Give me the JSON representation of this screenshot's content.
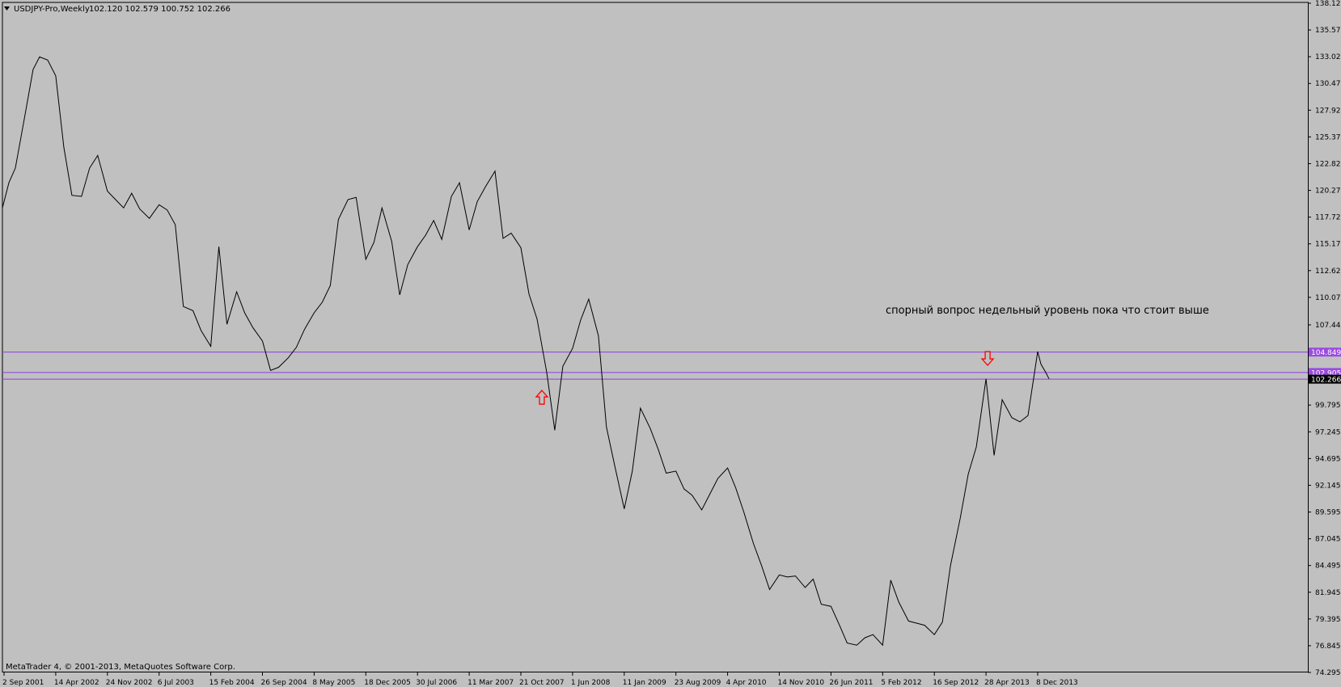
{
  "header": {
    "symbol_timeframe": "USDJPY-Pro,Weekly",
    "ohlc": "102.120 102.579 100.752 102.266"
  },
  "footer": {
    "copyright": "MetaTrader 4, © 2001-2013, MetaQuotes Software Corp."
  },
  "annotation": {
    "text": "спорный вопрос недельный уровень пока что стоит выше"
  },
  "colors": {
    "background": "#c0c0c0",
    "line": "#000000",
    "level": "#8c3ce6",
    "price_tag": "#9b4be0",
    "arrow": "#ff0000"
  },
  "chart_data": {
    "type": "line",
    "title": "USDJPY-Pro,Weekly",
    "xlabel": "",
    "ylabel": "",
    "ylim": [
      74.295,
      138.12
    ],
    "grid": false,
    "price_axis_ticks": [
      "138.120",
      "135.570",
      "133.020",
      "130.470",
      "127.920",
      "125.370",
      "122.820",
      "120.270",
      "117.720",
      "115.170",
      "112.620",
      "110.070",
      "107.445",
      "104.849",
      "102.905",
      "102.266",
      "99.795",
      "97.245",
      "94.695",
      "92.145",
      "89.595",
      "87.045",
      "84.495",
      "81.945",
      "79.395",
      "76.845",
      "74.295"
    ],
    "time_axis_ticks": [
      "2 Sep 2001",
      "14 Apr 2002",
      "24 Nov 2002",
      "6 Jul 2003",
      "15 Feb 2004",
      "26 Sep 2004",
      "8 May 2005",
      "18 Dec 2005",
      "30 Jul 2006",
      "11 Mar 2007",
      "21 Oct 2007",
      "1 Jun 2008",
      "11 Jan 2009",
      "23 Aug 2009",
      "4 Apr 2010",
      "14 Nov 2010",
      "26 Jun 2011",
      "5 Feb 2012",
      "16 Sep 2012",
      "28 Apr 2013",
      "8 Dec 2013"
    ],
    "series": [
      {
        "x": [
          "2001-08-26",
          "2001-09-23",
          "2001-10-21",
          "2001-12-02",
          "2002-01-06",
          "2002-02-03",
          "2002-03-10",
          "2002-04-14",
          "2002-05-19",
          "2002-06-23",
          "2002-08-04",
          "2002-09-08",
          "2002-10-13",
          "2002-11-24",
          "2002-12-29",
          "2003-02-02",
          "2003-03-09",
          "2003-04-13",
          "2003-05-25",
          "2003-07-06",
          "2003-08-10",
          "2003-09-14",
          "2003-10-19",
          "2003-11-30",
          "2004-01-04",
          "2004-02-15",
          "2004-03-21",
          "2004-04-25",
          "2004-06-06",
          "2004-07-11",
          "2004-08-15",
          "2004-09-26",
          "2004-10-31",
          "2004-12-05",
          "2005-01-16",
          "2005-02-20",
          "2005-03-27",
          "2005-05-08",
          "2005-06-12",
          "2005-07-17",
          "2005-08-21",
          "2005-10-02",
          "2005-11-06",
          "2005-12-18",
          "2006-01-22",
          "2006-02-26",
          "2006-04-09",
          "2006-05-14",
          "2006-06-18",
          "2006-07-30",
          "2006-09-03",
          "2006-10-08",
          "2006-11-12",
          "2006-12-24",
          "2007-01-28",
          "2007-03-11",
          "2007-04-15",
          "2007-05-20",
          "2007-07-01",
          "2007-08-05",
          "2007-09-09",
          "2007-10-21",
          "2007-11-25",
          "2007-12-30",
          "2008-02-10",
          "2008-03-16",
          "2008-04-20",
          "2008-06-01",
          "2008-07-06",
          "2008-08-10",
          "2008-09-21",
          "2008-10-26",
          "2008-11-30",
          "2009-01-11",
          "2009-02-15",
          "2009-03-22",
          "2009-05-03",
          "2009-06-07",
          "2009-07-12",
          "2009-08-23",
          "2009-09-27",
          "2009-11-01",
          "2009-12-13",
          "2010-01-17",
          "2010-02-21",
          "2010-04-04",
          "2010-05-09",
          "2010-06-13",
          "2010-07-25",
          "2010-08-29",
          "2010-10-03",
          "2010-11-14",
          "2010-12-19",
          "2011-01-23",
          "2011-03-06",
          "2011-04-10",
          "2011-05-15",
          "2011-06-26",
          "2011-07-31",
          "2011-09-04",
          "2011-10-16",
          "2011-11-20",
          "2011-12-25",
          "2012-02-05",
          "2012-03-11",
          "2012-04-15",
          "2012-05-27",
          "2012-07-01",
          "2012-08-05",
          "2012-09-16",
          "2012-10-21",
          "2012-11-25",
          "2013-01-06",
          "2013-02-10",
          "2013-03-17",
          "2013-04-28",
          "2013-06-02",
          "2013-07-07",
          "2013-08-18",
          "2013-09-22",
          "2013-10-27",
          "2013-12-08",
          "2013-12-22",
          "2014-01-12",
          "2014-01-26"
        ],
        "values": [
          118.6,
          121.0,
          122.4,
          127.5,
          131.8,
          133.0,
          132.7,
          131.2,
          124.4,
          119.8,
          119.7,
          122.4,
          123.6,
          120.2,
          119.4,
          118.6,
          120.0,
          118.5,
          117.6,
          118.9,
          118.4,
          117.0,
          109.2,
          108.8,
          106.9,
          105.4,
          114.9,
          107.5,
          110.6,
          108.6,
          107.2,
          105.9,
          103.1,
          103.4,
          104.3,
          105.3,
          107.0,
          108.6,
          109.6,
          111.2,
          117.5,
          119.4,
          119.6,
          113.7,
          115.3,
          118.6,
          115.4,
          110.3,
          113.2,
          114.9,
          116.0,
          117.4,
          115.6,
          119.7,
          121.0,
          116.5,
          119.2,
          120.6,
          122.1,
          115.7,
          116.2,
          114.8,
          110.4,
          108.0,
          102.9,
          97.4,
          103.5,
          105.2,
          107.9,
          109.9,
          106.4,
          97.7,
          94.1,
          89.9,
          93.5,
          99.5,
          97.6,
          95.6,
          93.3,
          93.5,
          91.8,
          91.2,
          89.8,
          91.3,
          92.8,
          93.8,
          91.9,
          89.6,
          86.6,
          84.5,
          82.2,
          83.6,
          83.4,
          83.5,
          82.4,
          83.2,
          80.8,
          80.6,
          78.9,
          77.1,
          76.9,
          77.6,
          77.9,
          76.9,
          83.1,
          81.0,
          79.2,
          79.0,
          78.8,
          77.9,
          79.1,
          84.5,
          89.0,
          93.2,
          95.8,
          102.3,
          95.0,
          100.3,
          98.6,
          98.2,
          98.8,
          104.9,
          103.7,
          102.9,
          102.3
        ]
      }
    ],
    "horizontal_lines": [
      {
        "value": 104.849,
        "label": "104.849"
      },
      {
        "value": 102.905,
        "label": "102.905"
      },
      {
        "value": 102.266,
        "label": "102.266"
      }
    ],
    "arrow_markers": [
      {
        "date": "2008-01-20",
        "price": 100.5,
        "direction": "up"
      },
      {
        "date": "2013-05-05",
        "price": 104.2,
        "direction": "down"
      }
    ]
  }
}
